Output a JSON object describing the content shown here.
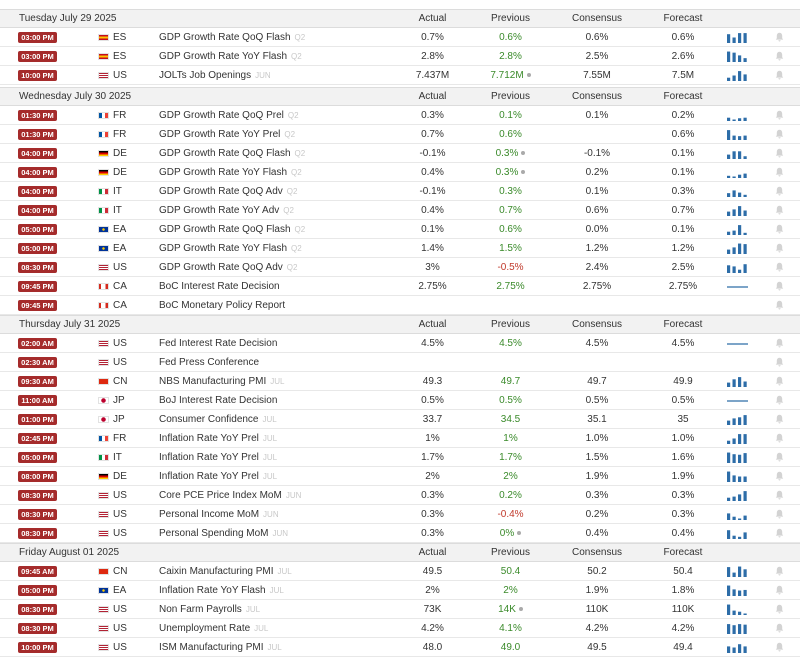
{
  "columns": {
    "actual": "Actual",
    "previous": "Previous",
    "consensus": "Consensus",
    "forecast": "Forecast"
  },
  "colors": {
    "time_badge": "#a52b2b",
    "prev_up": "#3a8a2a",
    "prev_down": "#c0392b",
    "spark": "#2d6da8"
  },
  "days": [
    {
      "date": "Tuesday July 29 2025",
      "events": [
        {
          "time": "03:00 PM",
          "flag": "es",
          "country": "ES",
          "event": "GDP Growth Rate QoQ Flash",
          "ref": "Q2",
          "actual": "0.7%",
          "previous": "0.6%",
          "prev_dir": "up",
          "revised": false,
          "consensus": "0.6%",
          "forecast": "0.6%",
          "spark": [
            0.8,
            0.5,
            0.9,
            0.9
          ]
        },
        {
          "time": "03:00 PM",
          "flag": "es",
          "country": "ES",
          "event": "GDP Growth Rate YoY Flash",
          "ref": "Q2",
          "actual": "2.8%",
          "previous": "2.8%",
          "prev_dir": "up",
          "revised": false,
          "consensus": "2.5%",
          "forecast": "2.6%",
          "spark": [
            0.95,
            0.85,
            0.6,
            0.35
          ]
        },
        {
          "time": "10:00 PM",
          "flag": "us",
          "country": "US",
          "event": "JOLTs Job Openings",
          "ref": "JUN",
          "actual": "7.437M",
          "previous": "7.712M",
          "prev_dir": "up",
          "revised": true,
          "consensus": "7.55M",
          "forecast": "7.5M",
          "spark": [
            0.3,
            0.5,
            0.9,
            0.6
          ]
        }
      ]
    },
    {
      "date": "Wednesday July 30 2025",
      "events": [
        {
          "time": "01:30 PM",
          "flag": "fr",
          "country": "FR",
          "event": "GDP Growth Rate QoQ Prel",
          "ref": "Q2",
          "actual": "0.3%",
          "previous": "0.1%",
          "prev_dir": "up",
          "revised": false,
          "consensus": "0.1%",
          "forecast": "0.2%",
          "spark": [
            0.3,
            0,
            0.25,
            0.3
          ]
        },
        {
          "time": "01:30 PM",
          "flag": "fr",
          "country": "FR",
          "event": "GDP Growth Rate YoY Prel",
          "ref": "Q2",
          "actual": "0.7%",
          "previous": "0.6%",
          "prev_dir": "up",
          "revised": false,
          "consensus": "",
          "forecast": "0.6%",
          "spark": [
            0.9,
            0.4,
            0.35,
            0.4
          ]
        },
        {
          "time": "04:00 PM",
          "flag": "de",
          "country": "DE",
          "event": "GDP Growth Rate QoQ Flash",
          "ref": "Q2",
          "actual": "-0.1%",
          "previous": "0.3%",
          "prev_dir": "up",
          "revised": true,
          "consensus": "-0.1%",
          "forecast": "0.1%",
          "spark": [
            0.4,
            0.7,
            0.7,
            0.25
          ]
        },
        {
          "time": "04:00 PM",
          "flag": "de",
          "country": "DE",
          "event": "GDP Growth Rate YoY Flash",
          "ref": "Q2",
          "actual": "0.4%",
          "previous": "0.3%",
          "prev_dir": "up",
          "revised": true,
          "consensus": "0.2%",
          "forecast": "0.1%",
          "spark": [
            0.2,
            0,
            0.3,
            0.4
          ]
        },
        {
          "time": "04:00 PM",
          "flag": "it",
          "country": "IT",
          "event": "GDP Growth Rate QoQ Adv",
          "ref": "Q2",
          "actual": "-0.1%",
          "previous": "0.3%",
          "prev_dir": "up",
          "revised": false,
          "consensus": "0.1%",
          "forecast": "0.3%",
          "spark": [
            0.35,
            0.6,
            0.4,
            0.2
          ]
        },
        {
          "time": "04:00 PM",
          "flag": "it",
          "country": "IT",
          "event": "GDP Growth Rate YoY Adv",
          "ref": "Q2",
          "actual": "0.4%",
          "previous": "0.7%",
          "prev_dir": "up",
          "revised": false,
          "consensus": "0.6%",
          "forecast": "0.7%",
          "spark": [
            0.4,
            0.6,
            0.9,
            0.5
          ]
        },
        {
          "time": "05:00 PM",
          "flag": "eu",
          "country": "EA",
          "event": "GDP Growth Rate QoQ Flash",
          "ref": "Q2",
          "actual": "0.1%",
          "previous": "0.6%",
          "prev_dir": "up",
          "revised": false,
          "consensus": "0.0%",
          "forecast": "0.1%",
          "spark": [
            0.3,
            0.4,
            0.9,
            0.2
          ]
        },
        {
          "time": "05:00 PM",
          "flag": "eu",
          "country": "EA",
          "event": "GDP Growth Rate YoY Flash",
          "ref": "Q2",
          "actual": "1.4%",
          "previous": "1.5%",
          "prev_dir": "up",
          "revised": false,
          "consensus": "1.2%",
          "forecast": "1.2%",
          "spark": [
            0.4,
            0.6,
            0.95,
            0.9
          ]
        },
        {
          "time": "08:30 PM",
          "flag": "us",
          "country": "US",
          "event": "GDP Growth Rate QoQ Adv",
          "ref": "Q2",
          "actual": "3%",
          "previous": "-0.5%",
          "prev_dir": "down",
          "revised": false,
          "consensus": "2.4%",
          "forecast": "2.5%",
          "spark": [
            0.7,
            0.6,
            0.3,
            0.8
          ]
        },
        {
          "time": "09:45 PM",
          "flag": "ca",
          "country": "CA",
          "event": "BoC Interest Rate Decision",
          "ref": "",
          "actual": "2.75%",
          "previous": "2.75%",
          "prev_dir": "up",
          "revised": false,
          "consensus": "2.75%",
          "forecast": "2.75%",
          "spark": "flat"
        },
        {
          "time": "09:45 PM",
          "flag": "ca",
          "country": "CA",
          "event": "BoC Monetary Policy Report",
          "ref": "",
          "actual": "",
          "previous": "",
          "prev_dir": "up",
          "revised": false,
          "consensus": "",
          "forecast": "",
          "spark": null
        }
      ]
    },
    {
      "date": "Thursday July 31 2025",
      "events": [
        {
          "time": "02:00 AM",
          "flag": "us",
          "country": "US",
          "event": "Fed Interest Rate Decision",
          "ref": "",
          "actual": "4.5%",
          "previous": "4.5%",
          "prev_dir": "up",
          "revised": false,
          "consensus": "4.5%",
          "forecast": "4.5%",
          "spark": "flat"
        },
        {
          "time": "02:30 AM",
          "flag": "us",
          "country": "US",
          "event": "Fed Press Conference",
          "ref": "",
          "actual": "",
          "previous": "",
          "prev_dir": "up",
          "revised": false,
          "consensus": "",
          "forecast": "",
          "spark": null
        },
        {
          "time": "09:30 AM",
          "flag": "cn",
          "country": "CN",
          "event": "NBS Manufacturing PMI",
          "ref": "JUL",
          "actual": "49.3",
          "previous": "49.7",
          "prev_dir": "up",
          "revised": false,
          "consensus": "49.7",
          "forecast": "49.9",
          "spark": [
            0.4,
            0.7,
            0.9,
            0.5
          ]
        },
        {
          "time": "11:00 AM",
          "flag": "jp",
          "country": "JP",
          "event": "BoJ Interest Rate Decision",
          "ref": "",
          "actual": "0.5%",
          "previous": "0.5%",
          "prev_dir": "up",
          "revised": false,
          "consensus": "0.5%",
          "forecast": "0.5%",
          "spark": "flat"
        },
        {
          "time": "01:00 PM",
          "flag": "jp",
          "country": "JP",
          "event": "Consumer Confidence",
          "ref": "JUL",
          "actual": "33.7",
          "previous": "34.5",
          "prev_dir": "up",
          "revised": false,
          "consensus": "35.1",
          "forecast": "35",
          "spark": [
            0.4,
            0.6,
            0.7,
            0.9
          ]
        },
        {
          "time": "02:45 PM",
          "flag": "fr",
          "country": "FR",
          "event": "Inflation Rate YoY Prel",
          "ref": "JUL",
          "actual": "1%",
          "previous": "1%",
          "prev_dir": "up",
          "revised": false,
          "consensus": "1.0%",
          "forecast": "1.0%",
          "spark": [
            0.3,
            0.5,
            0.9,
            0.9
          ]
        },
        {
          "time": "05:00 PM",
          "flag": "it",
          "country": "IT",
          "event": "Inflation Rate YoY Prel",
          "ref": "JUL",
          "actual": "1.7%",
          "previous": "1.7%",
          "prev_dir": "up",
          "revised": false,
          "consensus": "1.5%",
          "forecast": "1.6%",
          "spark": [
            0.95,
            0.8,
            0.75,
            0.9
          ]
        },
        {
          "time": "08:00 PM",
          "flag": "de",
          "country": "DE",
          "event": "Inflation Rate YoY Prel",
          "ref": "JUL",
          "actual": "2%",
          "previous": "2%",
          "prev_dir": "up",
          "revised": false,
          "consensus": "1.9%",
          "forecast": "1.9%",
          "spark": [
            0.95,
            0.6,
            0.5,
            0.5
          ]
        },
        {
          "time": "08:30 PM",
          "flag": "us",
          "country": "US",
          "event": "Core PCE Price Index MoM",
          "ref": "JUN",
          "actual": "0.3%",
          "previous": "0.2%",
          "prev_dir": "up",
          "revised": false,
          "consensus": "0.3%",
          "forecast": "0.3%",
          "spark": [
            0.3,
            0.4,
            0.6,
            0.9
          ]
        },
        {
          "time": "08:30 PM",
          "flag": "us",
          "country": "US",
          "event": "Personal Income MoM",
          "ref": "JUN",
          "actual": "0.3%",
          "previous": "-0.4%",
          "prev_dir": "down",
          "revised": false,
          "consensus": "0.2%",
          "forecast": "0.3%",
          "spark": [
            0.6,
            0.3,
            0,
            0.4
          ]
        },
        {
          "time": "08:30 PM",
          "flag": "us",
          "country": "US",
          "event": "Personal Spending MoM",
          "ref": "JUN",
          "actual": "0.3%",
          "previous": "0%",
          "prev_dir": "up",
          "revised": true,
          "consensus": "0.4%",
          "forecast": "0.4%",
          "spark": [
            0.8,
            0.3,
            0.2,
            0.6
          ]
        }
      ]
    },
    {
      "date": "Friday August 01 2025",
      "events": [
        {
          "time": "09:45 AM",
          "flag": "cn",
          "country": "CN",
          "event": "Caixin Manufacturing PMI",
          "ref": "JUL",
          "actual": "49.5",
          "previous": "50.4",
          "prev_dir": "up",
          "revised": false,
          "consensus": "50.2",
          "forecast": "50.4",
          "spark": [
            0.9,
            0.4,
            0.95,
            0.7
          ]
        },
        {
          "time": "05:00 PM",
          "flag": "eu",
          "country": "EA",
          "event": "Inflation Rate YoY Flash",
          "ref": "JUL",
          "actual": "2%",
          "previous": "2%",
          "prev_dir": "up",
          "revised": false,
          "consensus": "1.9%",
          "forecast": "1.8%",
          "spark": [
            0.95,
            0.6,
            0.5,
            0.55
          ]
        },
        {
          "time": "08:30 PM",
          "flag": "us",
          "country": "US",
          "event": "Non Farm Payrolls",
          "ref": "JUL",
          "actual": "73K",
          "previous": "14K",
          "prev_dir": "up",
          "revised": true,
          "consensus": "110K",
          "forecast": "110K",
          "spark": [
            0.95,
            0.4,
            0.3,
            0.1
          ]
        },
        {
          "time": "08:30 PM",
          "flag": "us",
          "country": "US",
          "event": "Unemployment Rate",
          "ref": "JUL",
          "actual": "4.2%",
          "previous": "4.1%",
          "prev_dir": "up",
          "revised": false,
          "consensus": "4.2%",
          "forecast": "4.2%",
          "spark": [
            0.9,
            0.8,
            0.9,
            0.85
          ]
        },
        {
          "time": "10:00 PM",
          "flag": "us",
          "country": "US",
          "event": "ISM Manufacturing PMI",
          "ref": "JUL",
          "actual": "48.0",
          "previous": "49.0",
          "prev_dir": "up",
          "revised": false,
          "consensus": "49.5",
          "forecast": "49.4",
          "spark": [
            0.6,
            0.5,
            0.8,
            0.6
          ]
        }
      ]
    }
  ]
}
